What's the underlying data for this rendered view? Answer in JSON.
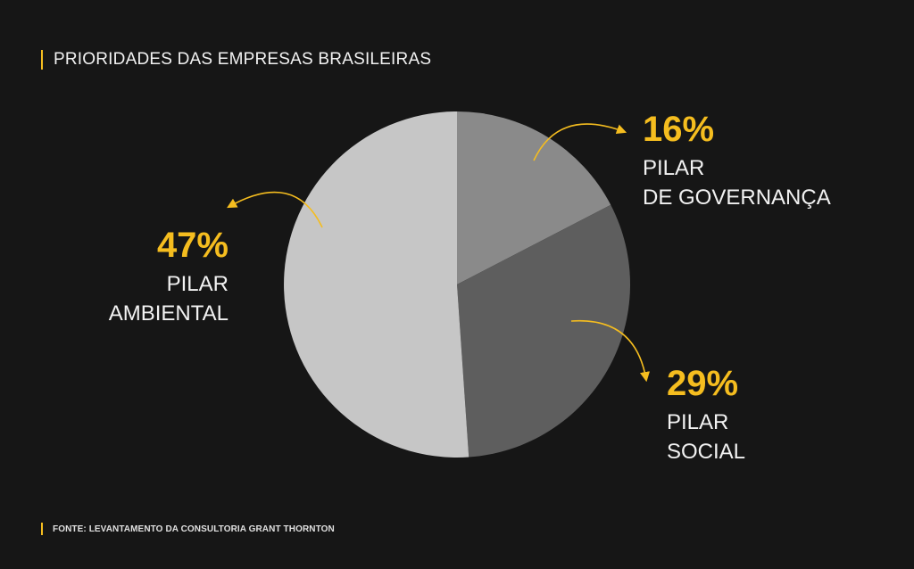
{
  "title": "PRIORIDADES DAS EMPRESAS BRASILEIRAS",
  "source": "FONTE: LEVANTAMENTO DA CONSULTORIA GRANT THORNTON",
  "colors": {
    "background": "#161616",
    "accent": "#f5bd1f",
    "text": "#f2f2f2"
  },
  "chart_data": {
    "type": "pie",
    "title": "PRIORIDADES DAS EMPRESAS BRASILEIRAS",
    "slices": [
      {
        "label_lines": [
          "PILAR",
          "DE GOVERNANÇA"
        ],
        "value": 16,
        "value_label": "16%",
        "color": "#8a8a8a"
      },
      {
        "label_lines": [
          "PILAR",
          "SOCIAL"
        ],
        "value": 29,
        "value_label": "29%",
        "color": "#5e5e5e"
      },
      {
        "label_lines": [
          "PILAR",
          "AMBIENTAL"
        ],
        "value": 47,
        "value_label": "47%",
        "color": "#c6c6c6"
      }
    ]
  }
}
